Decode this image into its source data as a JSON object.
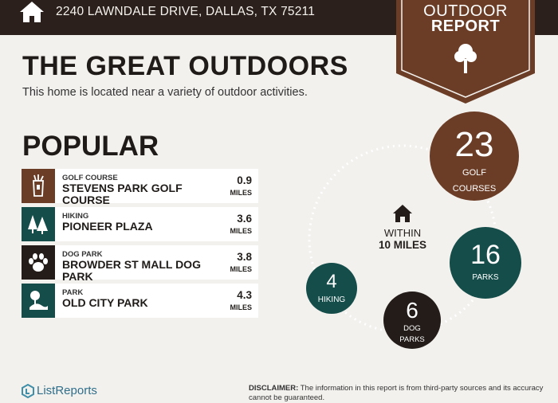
{
  "header": {
    "address": "2240 LAWNDALE DRIVE, DALLAS, TX 75211",
    "home_icon": "house-icon"
  },
  "badge": {
    "line1": "OUTDOOR",
    "line2": "REPORT",
    "icon": "tree-icon",
    "color": "#6b3d26"
  },
  "title": "THE GREAT OUTDOORS",
  "subtitle": "This home is located near a variety of outdoor activities.",
  "popular": {
    "heading": "POPULAR",
    "items": [
      {
        "category": "GOLF COURSE",
        "name": "STEVENS PARK GOLF COURSE",
        "distance": "0.9",
        "unit": "MILES",
        "icon": "golf-bag-icon",
        "color": "#6b3d26"
      },
      {
        "category": "HIKING",
        "name": "PIONEER PLAZA",
        "distance": "3.6",
        "unit": "MILES",
        "icon": "trees-icon",
        "color": "#144d4a"
      },
      {
        "category": "DOG PARK",
        "name": "BROWDER ST MALL DOG PARK",
        "distance": "3.8",
        "unit": "MILES",
        "icon": "paw-icon",
        "color": "#231c19"
      },
      {
        "category": "PARK",
        "name": "OLD CITY PARK",
        "distance": "4.3",
        "unit": "MILES",
        "icon": "park-icon",
        "color": "#144d4a"
      }
    ]
  },
  "summary": {
    "within_line1": "WITHIN",
    "within_line2": "10 MILES",
    "golf": {
      "count": "23",
      "label_line1": "GOLF",
      "label_line2": "COURSES"
    },
    "parks": {
      "count": "16",
      "label": "PARKS"
    },
    "hiking": {
      "count": "4",
      "label": "HIKING"
    },
    "dog_parks": {
      "count": "6",
      "label_line1": "DOG",
      "label_line2": "PARKS"
    }
  },
  "footer": {
    "brand": "ListReports",
    "disclaimer_label": "DISCLAIMER:",
    "disclaimer_text": "The information in this report is from third-party sources and its accuracy cannot be guaranteed."
  }
}
